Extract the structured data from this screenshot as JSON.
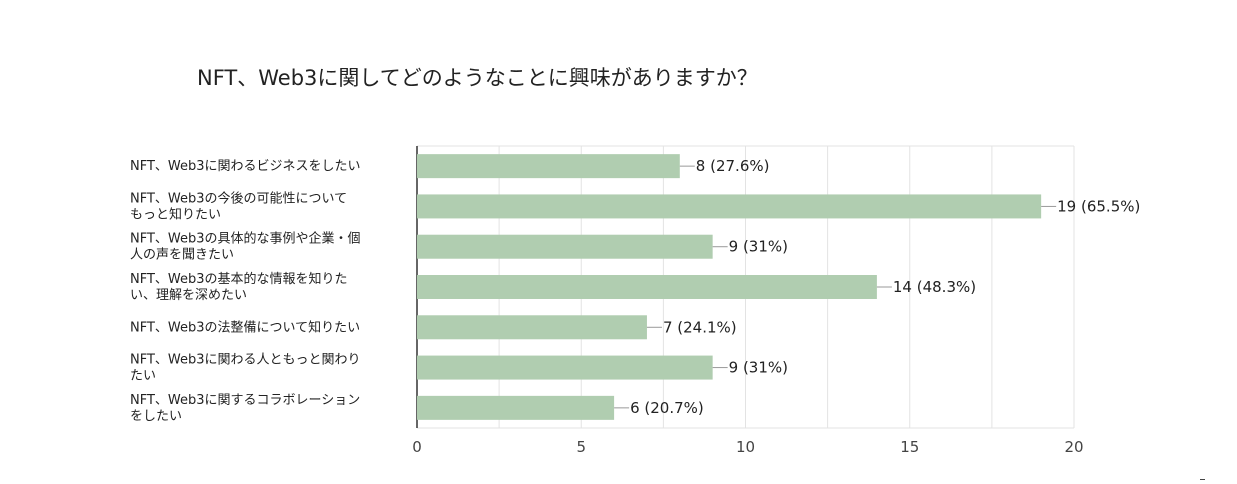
{
  "chart_data": {
    "type": "bar",
    "orientation": "horizontal",
    "title": "NFT、Web3に関してどのようなことに興味がありますか？",
    "categories": [
      [
        "NFT、Web3に関わるビジネスをしたい"
      ],
      [
        "NFT、Web3の今後の可能性について",
        "もっと知りたい"
      ],
      [
        "NFT、Web3の具体的な事例や企業・個",
        "人の声を聞きたい"
      ],
      [
        "NFT、Web3の基本的な情報を知りた",
        "い、理解を深めたい"
      ],
      [
        "NFT、Web3の法整備について知りたい"
      ],
      [
        "NFT、Web3に関わる人ともっと関わり",
        "たい"
      ],
      [
        "NFT、Web3に関するコラボレーション",
        "をしたい"
      ]
    ],
    "values": [
      8,
      19,
      9,
      14,
      7,
      9,
      6
    ],
    "data_labels": [
      "8 (27.6%)",
      "19 (65.5%)",
      "9 (31%)",
      "14 (48.3%)",
      "7 (24.1%)",
      "9 (31%)",
      "6 (20.7%)"
    ],
    "xlim": [
      0,
      20
    ],
    "xticks": [
      0,
      5,
      10,
      15,
      20
    ],
    "grid": true,
    "legend": "none",
    "colors": {
      "bar": "#b0cdb0",
      "grid": "#e3e3e3",
      "axis": "#333333",
      "leader": "#999999"
    }
  }
}
